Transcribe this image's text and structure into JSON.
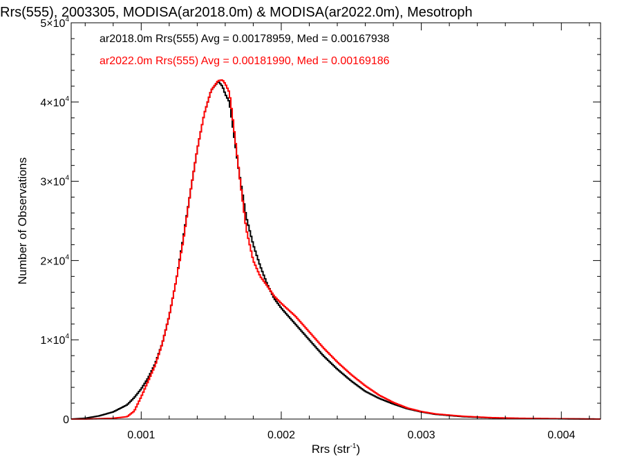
{
  "chart_data": {
    "type": "line",
    "title": "Rrs(555), 2003305, MODISA(ar2018.0m) & MODISA(ar2022.0m), Mesotroph",
    "xlabel": "Rrs (str",
    "xlabel_sup": "-1",
    "xlabel_end": ")",
    "ylabel": "Number of Observations",
    "xlim": [
      0.0005,
      0.00428
    ],
    "ylim": [
      0,
      50000
    ],
    "x_ticks": [
      {
        "value": 0.001,
        "label": "0.001"
      },
      {
        "value": 0.002,
        "label": "0.002"
      },
      {
        "value": 0.003,
        "label": "0.003"
      },
      {
        "value": 0.004,
        "label": "0.004"
      }
    ],
    "y_ticks": [
      {
        "value": 0,
        "mant": "0",
        "sup": ""
      },
      {
        "value": 10000,
        "mant": "1×10",
        "sup": "4"
      },
      {
        "value": 20000,
        "mant": "2×10",
        "sup": "4"
      },
      {
        "value": 30000,
        "mant": "3×10",
        "sup": "4"
      },
      {
        "value": 40000,
        "mant": "4×10",
        "sup": "4"
      },
      {
        "value": 50000,
        "mant": "5×10",
        "sup": "4"
      }
    ],
    "series": [
      {
        "name": "ar2018.0m",
        "color": "#000000",
        "legend_text": "ar2018.0m Rrs(555) Avg = 0.00178959, Med = 0.00167938",
        "x": [
          0.0005,
          0.0006,
          0.0007,
          0.0008,
          0.0009,
          0.00095,
          0.001,
          0.00105,
          0.0011,
          0.00115,
          0.0012,
          0.00125,
          0.0013,
          0.00135,
          0.0014,
          0.00145,
          0.0015,
          0.00155,
          0.00158,
          0.0016,
          0.00163,
          0.00165,
          0.0017,
          0.00175,
          0.0018,
          0.00185,
          0.0019,
          0.00195,
          0.002,
          0.0021,
          0.0022,
          0.0023,
          0.0024,
          0.0025,
          0.0026,
          0.0027,
          0.0028,
          0.0029,
          0.003,
          0.0031,
          0.0032,
          0.0033,
          0.0035,
          0.0037,
          0.0039,
          0.0041,
          0.00428
        ],
        "y": [
          0,
          100,
          400,
          900,
          1800,
          2700,
          3800,
          5200,
          7000,
          9500,
          13000,
          17500,
          22800,
          28500,
          34000,
          38500,
          41500,
          42600,
          42000,
          41000,
          40000,
          37500,
          31000,
          25500,
          22000,
          19300,
          17000,
          15200,
          14000,
          12000,
          10000,
          8000,
          6300,
          4800,
          3500,
          2600,
          1900,
          1300,
          900,
          600,
          450,
          300,
          150,
          90,
          50,
          20,
          0
        ]
      },
      {
        "name": "ar2022.0m",
        "color": "#ff0000",
        "legend_text": "ar2022.0m Rrs(555) Avg = 0.00181990, Med = 0.00169186",
        "x": [
          0.0005,
          0.0006,
          0.0007,
          0.0008,
          0.0009,
          0.00095,
          0.001,
          0.00105,
          0.0011,
          0.00115,
          0.0012,
          0.00125,
          0.0013,
          0.00135,
          0.0014,
          0.00145,
          0.0015,
          0.00155,
          0.00158,
          0.0016,
          0.00163,
          0.00165,
          0.0017,
          0.00175,
          0.0018,
          0.00185,
          0.0019,
          0.00195,
          0.002,
          0.0021,
          0.0022,
          0.0023,
          0.0024,
          0.0025,
          0.0026,
          0.0027,
          0.0028,
          0.0029,
          0.003,
          0.0031,
          0.0032,
          0.0033,
          0.0035,
          0.0037,
          0.0039,
          0.0041,
          0.00428
        ],
        "y": [
          0,
          0,
          50,
          100,
          300,
          1000,
          2800,
          4800,
          6800,
          9500,
          13000,
          17500,
          22500,
          28500,
          34000,
          38500,
          41500,
          42700,
          42800,
          42300,
          41200,
          38500,
          31000,
          24000,
          20000,
          18000,
          16800,
          15500,
          14600,
          13000,
          11000,
          9000,
          7200,
          5600,
          4200,
          3000,
          2100,
          1400,
          950,
          650,
          500,
          350,
          180,
          100,
          60,
          25,
          0
        ]
      }
    ]
  }
}
